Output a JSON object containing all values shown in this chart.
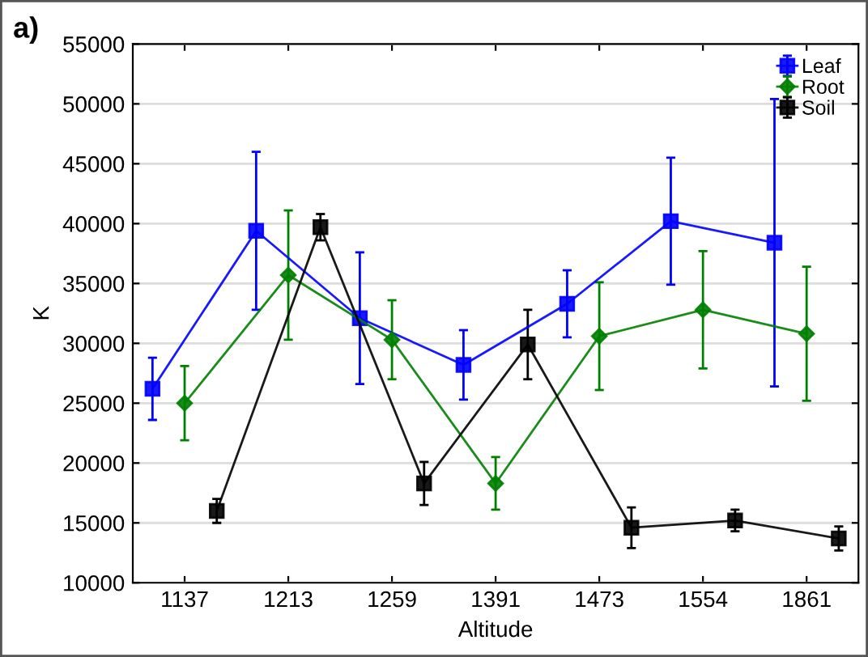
{
  "chart_data": {
    "type": "line",
    "xlabel": "Altitude",
    "ylabel": "K",
    "annotations": [
      "a)"
    ],
    "categories": [
      "1137",
      "1213",
      "1259",
      "1391",
      "1473",
      "1554",
      "1861"
    ],
    "ylim": [
      10000,
      55000
    ],
    "yticks": [
      10000,
      15000,
      20000,
      25000,
      30000,
      35000,
      40000,
      45000,
      50000,
      55000
    ],
    "grid": "y",
    "legend": "top right",
    "line_style": "solid",
    "series": [
      {
        "name": "Leaf",
        "color": "#0000ff",
        "marker": "square",
        "values": [
          26200,
          39400,
          32100,
          28200,
          33300,
          40200,
          38400
        ],
        "errors": [
          2600,
          6600,
          5500,
          2900,
          2800,
          5300,
          12000
        ]
      },
      {
        "name": "Root",
        "color": "#008000",
        "marker": "diamond",
        "values": [
          25000,
          35700,
          30300,
          18300,
          30600,
          32800,
          30800
        ],
        "errors": [
          3100,
          5400,
          3300,
          2200,
          4500,
          4900,
          5600
        ]
      },
      {
        "name": "Soil",
        "color": "#000000",
        "marker": "square",
        "values": [
          16000,
          39700,
          18300,
          29900,
          14600,
          15200,
          13700
        ],
        "errors": [
          1000,
          1100,
          1800,
          2900,
          1700,
          900,
          1000
        ]
      }
    ]
  }
}
